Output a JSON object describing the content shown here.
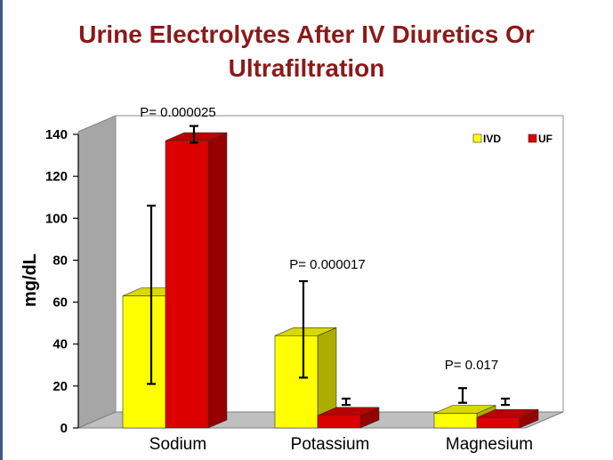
{
  "title": {
    "line1": "Urine Electrolytes  After IV Diuretics Or",
    "line2": "Ultrafiltration"
  },
  "colors": {
    "title": "#8b1a1a",
    "ivd": "#ffff00",
    "uf": "#dd0000",
    "wall": "#a6a6a6",
    "floor": "#bfbfbf"
  },
  "chart_data": {
    "type": "bar",
    "categories": [
      "Sodium",
      "Potassium",
      "Magnesium"
    ],
    "ylabel": "mg/dL",
    "xlabel": "",
    "ylim": [
      0,
      140
    ],
    "yticks": [
      0,
      20,
      40,
      60,
      80,
      100,
      120,
      140
    ],
    "grid": false,
    "legend_position": "top-right",
    "series": [
      {
        "name": "IVD",
        "color": "#ffff00",
        "values": [
          63,
          44,
          7
        ],
        "error_low": [
          21,
          24,
          12
        ],
        "error_high": [
          106,
          70,
          19
        ]
      },
      {
        "name": "UF",
        "color": "#dd0000",
        "values": [
          137,
          6,
          5
        ],
        "error_low": [
          136,
          11,
          11
        ],
        "error_high": [
          144,
          14,
          14
        ]
      }
    ],
    "annotations": [
      {
        "text": "P= 0.000025",
        "category": "Sodium"
      },
      {
        "text": "P= 0.000017",
        "category": "Potassium"
      },
      {
        "text": "P= 0.017",
        "category": "Magnesium"
      }
    ]
  }
}
